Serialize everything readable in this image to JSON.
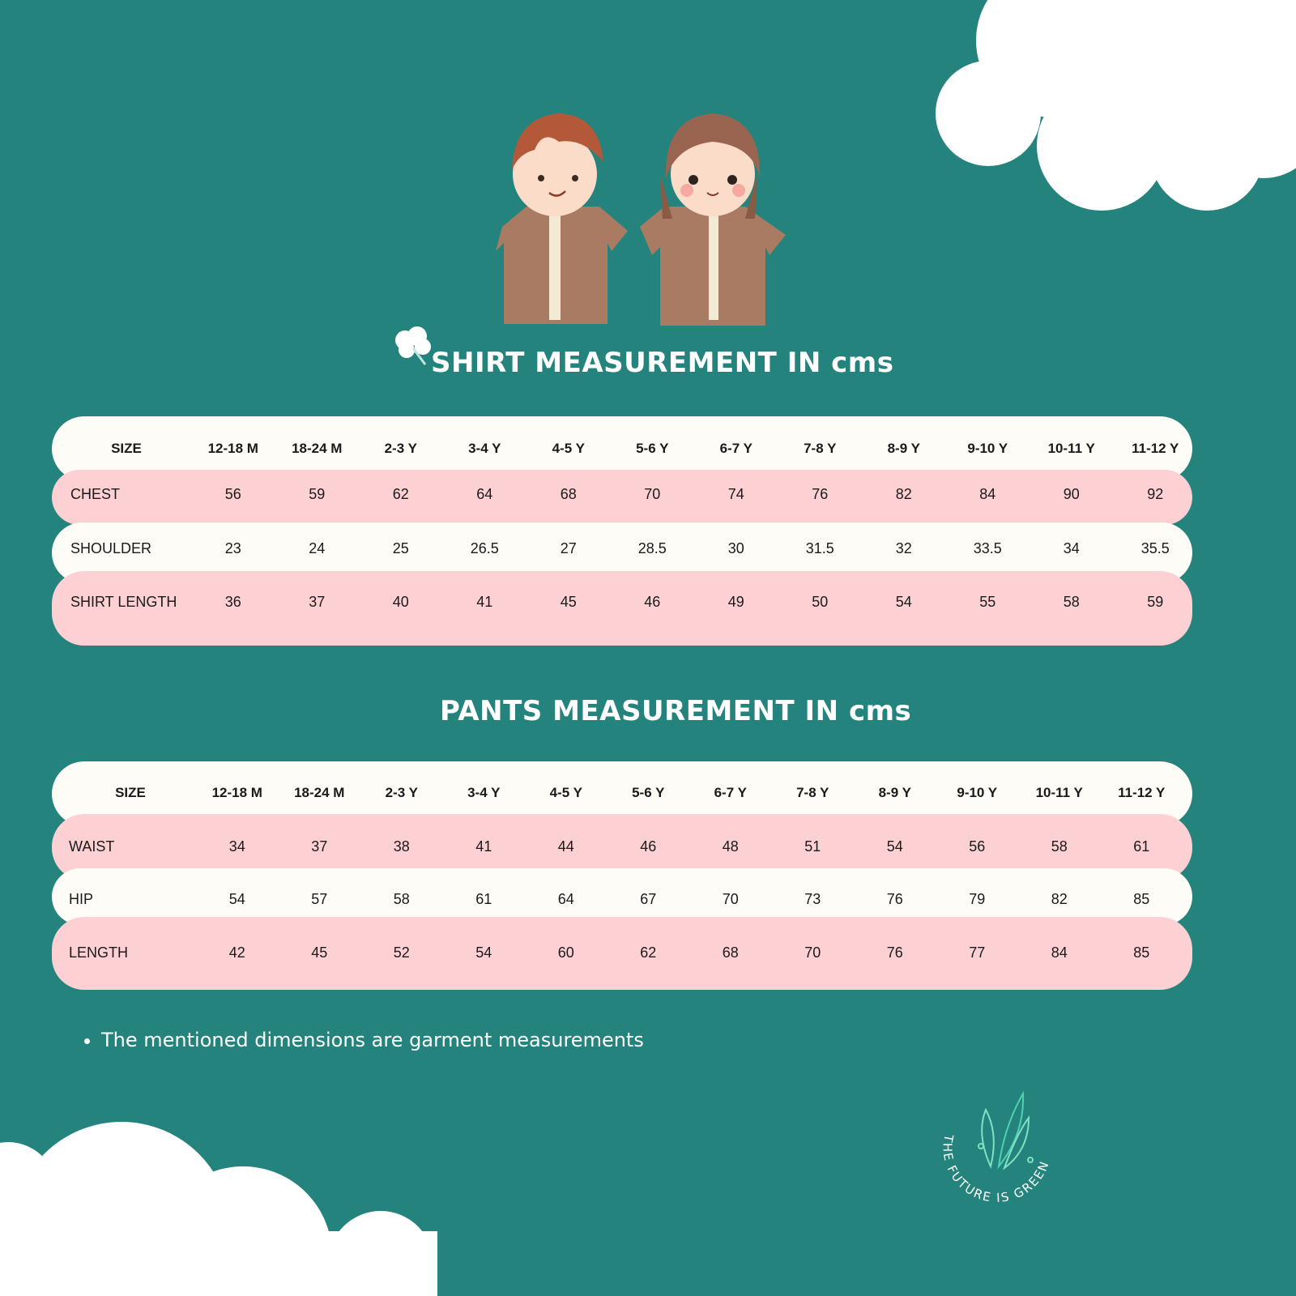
{
  "colors": {
    "background": "#24847d",
    "row_cream": "#fefcf6",
    "row_pink": "#fdd0d3",
    "text": "#1a1a1a"
  },
  "shirt": {
    "title": "SHIRT MEASUREMENT IN cms",
    "header": [
      "SIZE",
      "12-18 M",
      "18-24 M",
      "2-3 Y",
      "3-4 Y",
      "4-5 Y",
      "5-6 Y",
      "6-7 Y",
      "7-8 Y",
      "8-9 Y",
      "9-10 Y",
      "10-11 Y",
      "11-12 Y"
    ],
    "rows": [
      [
        "CHEST",
        "56",
        "59",
        "62",
        "64",
        "68",
        "70",
        "74",
        "76",
        "82",
        "84",
        "90",
        "92"
      ],
      [
        "SHOULDER",
        "23",
        "24",
        "25",
        "26.5",
        "27",
        "28.5",
        "30",
        "31.5",
        "32",
        "33.5",
        "34",
        "35.5"
      ],
      [
        "SHIRT LENGTH",
        "36",
        "37",
        "40",
        "41",
        "45",
        "46",
        "49",
        "50",
        "54",
        "55",
        "58",
        "59"
      ]
    ]
  },
  "pants": {
    "title": "PANTS MEASUREMENT IN cms",
    "header": [
      "SIZE",
      "12-18 M",
      "18-24 M",
      "2-3 Y",
      "3-4 Y",
      "4-5 Y",
      "5-6 Y",
      "6-7 Y",
      "7-8 Y",
      "8-9 Y",
      "9-10 Y",
      "10-11 Y",
      "11-12 Y"
    ],
    "rows": [
      [
        "WAIST",
        "34",
        "37",
        "38",
        "41",
        "44",
        "46",
        "48",
        "51",
        "54",
        "56",
        "58",
        "61"
      ],
      [
        "HIP",
        "54",
        "57",
        "58",
        "61",
        "64",
        "67",
        "70",
        "73",
        "76",
        "79",
        "82",
        "85"
      ],
      [
        "LENGTH",
        "42",
        "45",
        "52",
        "54",
        "60",
        "62",
        "68",
        "70",
        "76",
        "77",
        "84",
        "85"
      ]
    ]
  },
  "note": "The mentioned dimensions are garment measurements",
  "logo": {
    "text": "THE FUTURE IS GREEN"
  },
  "icons": [
    "cloud",
    "boy-illustration",
    "girl-illustration",
    "cotton-flower-icon",
    "leaf-logo"
  ]
}
